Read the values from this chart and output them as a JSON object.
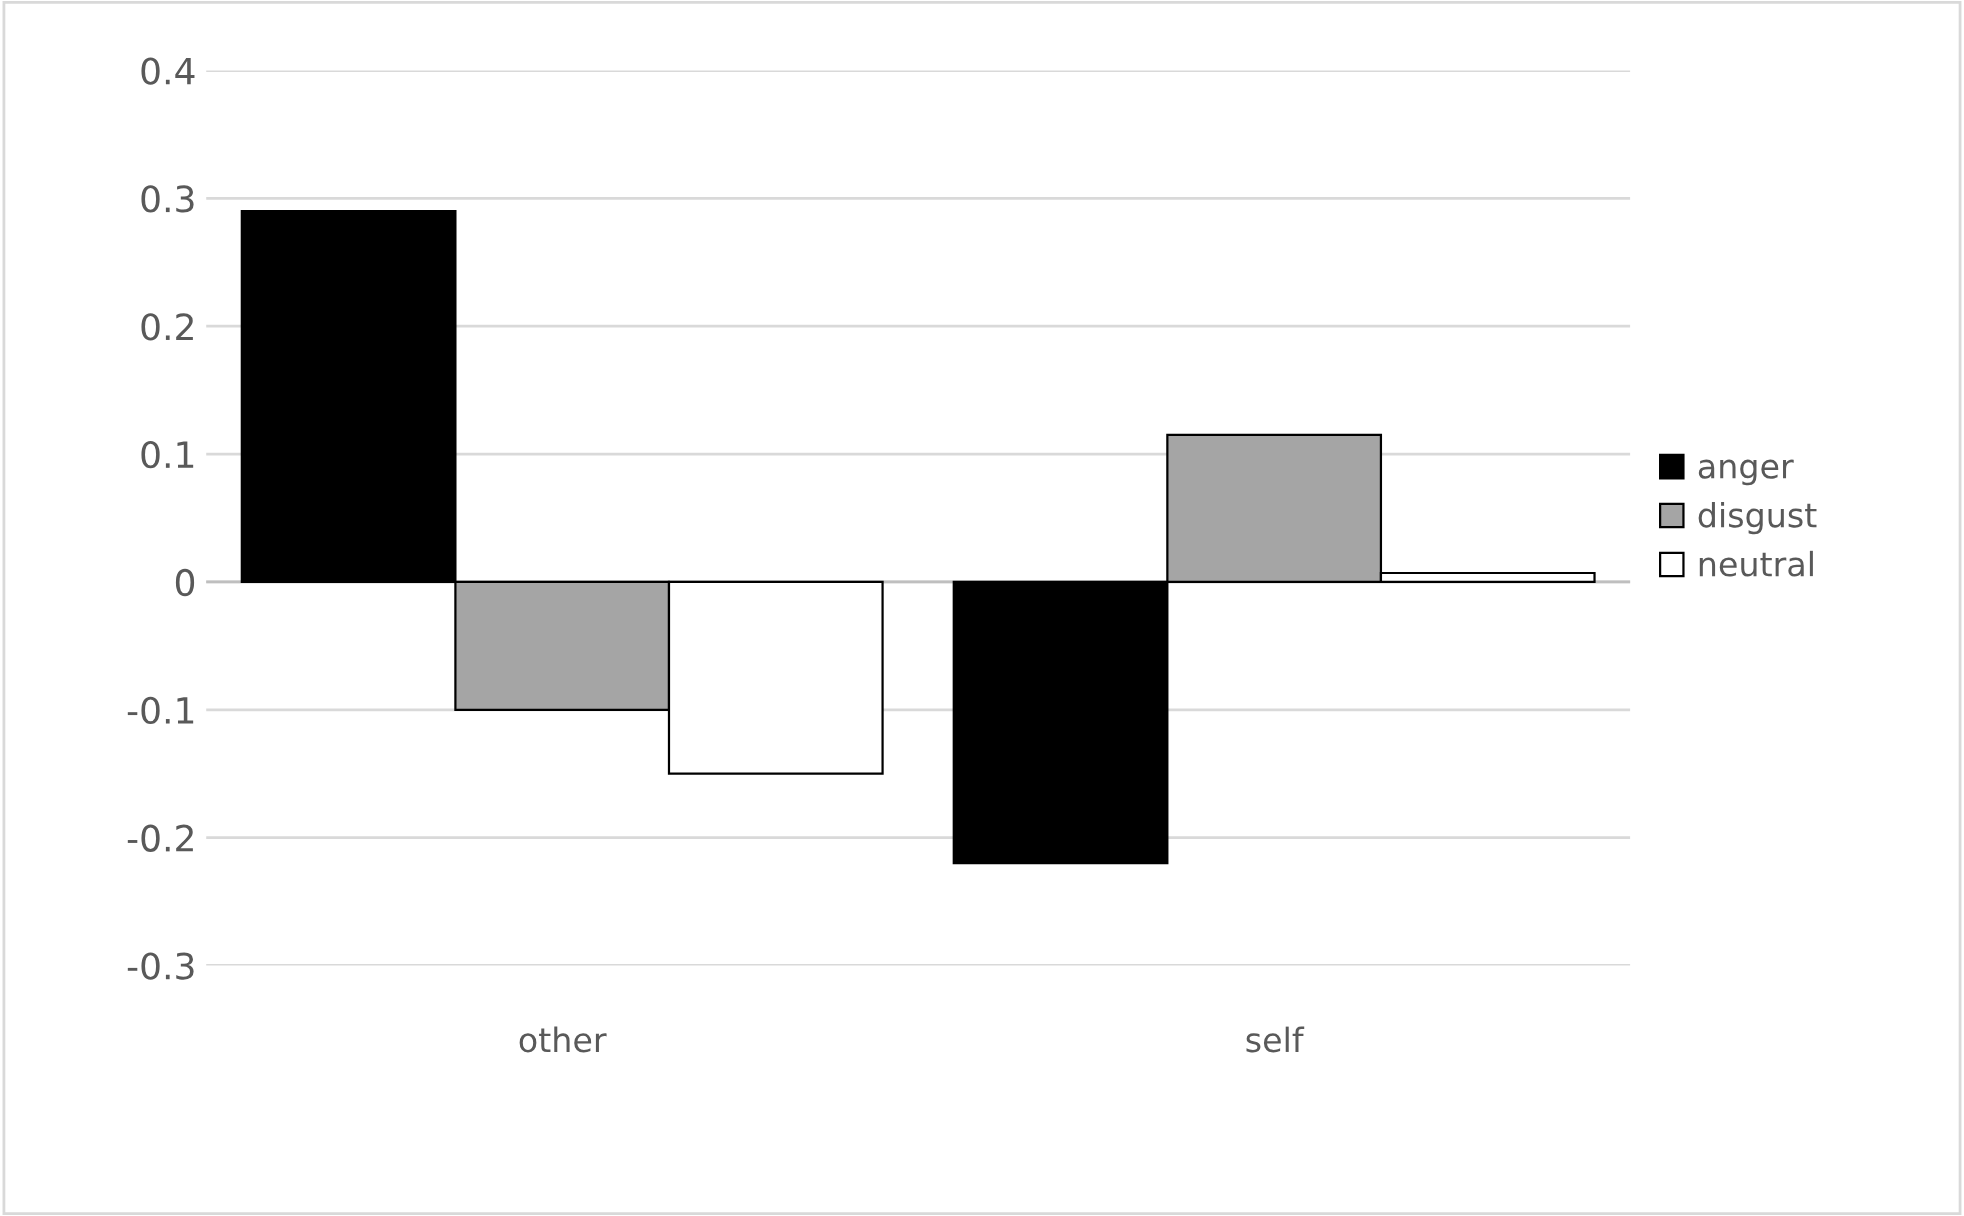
{
  "chart_data": {
    "type": "bar",
    "categories": [
      "other",
      "self"
    ],
    "series": [
      {
        "name": "anger",
        "color": "#000000",
        "values": [
          0.29,
          -0.22
        ]
      },
      {
        "name": "disgust",
        "color": "#a5a5a5",
        "values": [
          -0.1,
          0.115
        ]
      },
      {
        "name": "neutral",
        "color": "#ffffff",
        "values": [
          -0.15,
          0.007
        ]
      }
    ],
    "ylim": [
      -0.3,
      0.4
    ],
    "yticks": [
      -0.3,
      -0.2,
      -0.1,
      0,
      0.1,
      0.2,
      0.3,
      0.4
    ],
    "grid": "y",
    "legend": "right"
  }
}
